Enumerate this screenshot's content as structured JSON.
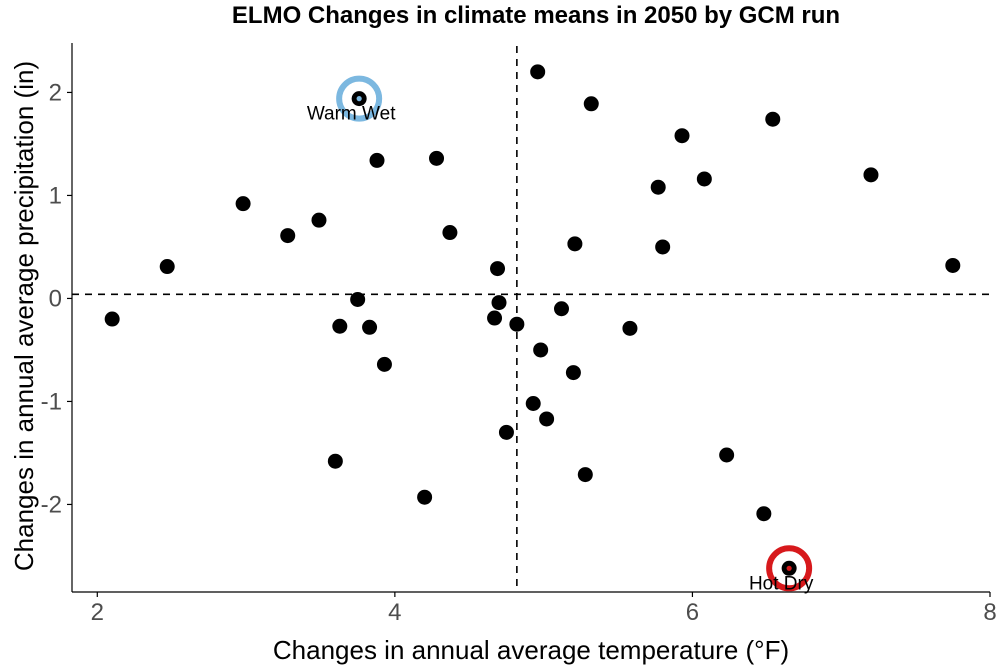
{
  "chart_data": {
    "type": "scatter",
    "title": "ELMO Changes in climate means in 2050 by GCM run",
    "xlabel": "Changes in annual average temperature (°F)",
    "ylabel": "Changes in annual average precipitation (in)",
    "xlim": [
      1.83,
      8.0
    ],
    "ylim": [
      -2.85,
      2.48
    ],
    "xticks": [
      2,
      4,
      6,
      8
    ],
    "yticks": [
      -2,
      -1,
      0,
      1,
      2
    ],
    "grid": false,
    "reference_lines": {
      "x": 4.82,
      "y": 0.04
    },
    "points": [
      {
        "x": 2.1,
        "y": -0.2
      },
      {
        "x": 2.47,
        "y": 0.31
      },
      {
        "x": 2.98,
        "y": 0.92
      },
      {
        "x": 3.28,
        "y": 0.61
      },
      {
        "x": 3.49,
        "y": 0.76
      },
      {
        "x": 3.6,
        "y": -1.58
      },
      {
        "x": 3.63,
        "y": -0.27
      },
      {
        "x": 3.75,
        "y": -0.01
      },
      {
        "x": 3.76,
        "y": 1.94
      },
      {
        "x": 3.83,
        "y": -0.28
      },
      {
        "x": 3.88,
        "y": 1.34
      },
      {
        "x": 3.93,
        "y": -0.64
      },
      {
        "x": 4.2,
        "y": -1.93
      },
      {
        "x": 4.28,
        "y": 1.36
      },
      {
        "x": 4.37,
        "y": 0.64
      },
      {
        "x": 4.67,
        "y": -0.19
      },
      {
        "x": 4.69,
        "y": 0.29
      },
      {
        "x": 4.7,
        "y": -0.04
      },
      {
        "x": 4.75,
        "y": -1.3
      },
      {
        "x": 4.82,
        "y": -0.25
      },
      {
        "x": 4.93,
        "y": -1.02
      },
      {
        "x": 4.96,
        "y": 2.2
      },
      {
        "x": 4.98,
        "y": -0.5
      },
      {
        "x": 5.02,
        "y": -1.17
      },
      {
        "x": 5.12,
        "y": -0.1
      },
      {
        "x": 5.2,
        "y": -0.72
      },
      {
        "x": 5.21,
        "y": 0.53
      },
      {
        "x": 5.28,
        "y": -1.71
      },
      {
        "x": 5.32,
        "y": 1.89
      },
      {
        "x": 5.58,
        "y": -0.29
      },
      {
        "x": 5.77,
        "y": 1.08
      },
      {
        "x": 5.8,
        "y": 0.5
      },
      {
        "x": 5.93,
        "y": 1.58
      },
      {
        "x": 6.08,
        "y": 1.16
      },
      {
        "x": 6.23,
        "y": -1.52
      },
      {
        "x": 6.48,
        "y": -2.09
      },
      {
        "x": 6.54,
        "y": 1.74
      },
      {
        "x": 6.65,
        "y": -2.62
      },
      {
        "x": 7.2,
        "y": 1.2
      },
      {
        "x": 7.75,
        "y": 0.32
      }
    ],
    "highlights": [
      {
        "label": "Warm Wet",
        "x": 3.76,
        "y": 1.94,
        "color": "#7cb8e0"
      },
      {
        "label": "Hot Dry",
        "x": 6.65,
        "y": -2.62,
        "color": "#d7191c"
      }
    ]
  }
}
